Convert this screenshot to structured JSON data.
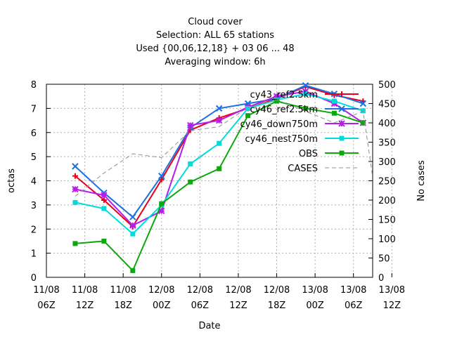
{
  "chart_data": {
    "type": "line",
    "title_lines": [
      "Cloud cover",
      "Selection: ALL     65 stations",
      "Used {00,06,12,18} + 03 06 ... 48",
      "Averaging window:  6h"
    ],
    "xlabel": "Date",
    "ylabel": "octas",
    "y2label": "No cases",
    "ylim": [
      0,
      8
    ],
    "y2lim": [
      0,
      500
    ],
    "yticks": [
      "0",
      "1",
      "2",
      "3",
      "4",
      "5",
      "6",
      "7",
      "8"
    ],
    "y2ticks": [
      "0",
      "50",
      "100",
      "150",
      "200",
      "250",
      "300",
      "350",
      "400",
      "450",
      "500"
    ],
    "xticks": [
      {
        "line1": "11/08",
        "line2": "06Z"
      },
      {
        "line1": "11/08",
        "line2": "12Z"
      },
      {
        "line1": "11/08",
        "line2": "18Z"
      },
      {
        "line1": "12/08",
        "line2": "00Z"
      },
      {
        "line1": "12/08",
        "line2": "06Z"
      },
      {
        "line1": "12/08",
        "line2": "12Z"
      },
      {
        "line1": "12/08",
        "line2": "18Z"
      },
      {
        "line1": "13/08",
        "line2": "00Z"
      },
      {
        "line1": "13/08",
        "line2": "06Z"
      },
      {
        "line1": "13/08",
        "line2": "12Z"
      }
    ],
    "x_hours": [
      9,
      18,
      27,
      36,
      45,
      54,
      63,
      72,
      81,
      90,
      99,
      102
    ],
    "grid": true,
    "legend_position": "top-right",
    "series": [
      {
        "name": "cy43_ref2.5km",
        "color": "#e8001a",
        "marker": "plus",
        "axis": "left",
        "x": [
          9,
          18,
          27,
          36,
          45,
          54,
          63,
          72,
          81,
          90,
          99
        ],
        "values": [
          4.2,
          3.2,
          2.1,
          4.05,
          6.1,
          6.6,
          7.0,
          7.4,
          7.9,
          7.55,
          7.3
        ]
      },
      {
        "name": "cy46_ref2.5km",
        "color": "#1e6fe0",
        "marker": "x",
        "axis": "left",
        "x": [
          9,
          18,
          27,
          36,
          45,
          54,
          63,
          72,
          81,
          90,
          99
        ],
        "values": [
          4.6,
          3.5,
          2.5,
          4.2,
          6.2,
          7.0,
          7.2,
          7.4,
          7.95,
          7.6,
          7.2
        ]
      },
      {
        "name": "cy46_down750m",
        "color": "#b51ee8",
        "marker": "asterisk",
        "axis": "left",
        "x": [
          9,
          18,
          27,
          36,
          45,
          54,
          63,
          72,
          81,
          90,
          99
        ],
        "values": [
          3.65,
          3.4,
          2.15,
          2.75,
          6.3,
          6.5,
          7.05,
          7.5,
          7.7,
          7.2,
          6.4
        ]
      },
      {
        "name": "cy46_nest750m",
        "color": "#00dcdc",
        "marker": "square",
        "axis": "left",
        "x": [
          9,
          18,
          27,
          36,
          45,
          54,
          63,
          72,
          81,
          90,
          99
        ],
        "values": [
          3.1,
          2.85,
          1.8,
          3.0,
          4.7,
          5.55,
          7.0,
          7.35,
          7.6,
          7.3,
          6.9
        ]
      },
      {
        "name": "OBS",
        "color": "#0ca80c",
        "marker": "filled-square",
        "axis": "left",
        "x": [
          9,
          18,
          27,
          36,
          45,
          54,
          63,
          72,
          81,
          90,
          99
        ],
        "values": [
          1.4,
          1.5,
          0.28,
          3.05,
          3.95,
          4.5,
          6.7,
          7.3,
          7.0,
          6.8,
          6.4
        ]
      },
      {
        "name": "CASES",
        "color": "#909090",
        "marker": "none",
        "dashed": true,
        "axis": "right",
        "x": [
          9,
          18,
          27,
          36,
          45,
          54,
          63,
          72,
          81,
          90,
          99,
          102
        ],
        "values": [
          210,
          270,
          320,
          310,
          380,
          390,
          440,
          460,
          430,
          400,
          430,
          260
        ]
      }
    ]
  }
}
